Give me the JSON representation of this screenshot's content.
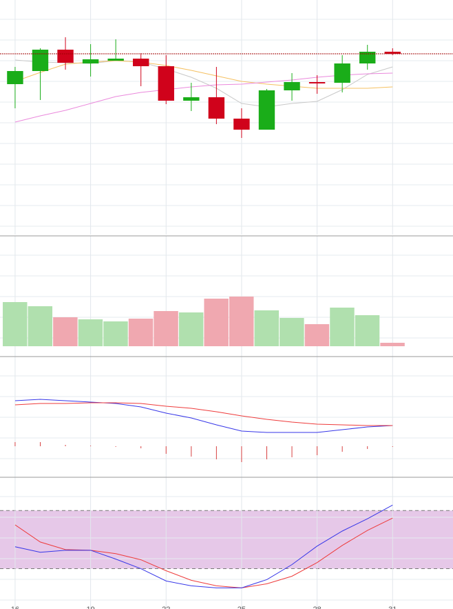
{
  "chart_data": [
    {
      "type": "candlestick",
      "x": [
        16,
        17,
        18,
        19,
        20,
        21,
        22,
        23,
        24,
        25,
        26,
        27,
        28,
        29,
        30,
        31
      ],
      "xlim": [
        15.4,
        33.4
      ],
      "xticks": [
        16,
        19,
        22,
        25,
        28,
        31
      ],
      "ylim": [
        0,
        340
      ],
      "grid": true,
      "up_color": "#1aad19",
      "down_color": "#d0021b",
      "open": [
        218,
        237,
        268,
        248,
        252,
        255,
        244,
        194,
        199,
        168,
        152,
        209,
        221,
        220,
        248,
        265
      ],
      "close": [
        237,
        268,
        249,
        254,
        255,
        244,
        194,
        199,
        168,
        152,
        209,
        221,
        219,
        248,
        265,
        262
      ],
      "high": [
        243,
        270,
        286,
        276,
        283,
        263,
        260,
        220,
        243,
        183,
        211,
        234,
        231,
        260,
        275,
        270
      ],
      "low": [
        183,
        195,
        239,
        229,
        252,
        215,
        189,
        179,
        160,
        140,
        152,
        194,
        204,
        206,
        239,
        260
      ],
      "price_line": 262,
      "price_line_color": "#a00000",
      "series": [
        {
          "color": "#c8c8c8",
          "values": [
            253,
            250,
            249,
            248,
            252,
            250,
            240,
            228,
            212,
            190,
            185,
            190,
            193,
            210,
            232,
            243
          ]
        },
        {
          "color": "#f5c060",
          "values": [
            222,
            235,
            247,
            250,
            252,
            250,
            245,
            238,
            230,
            222,
            218,
            215,
            212,
            212,
            212,
            214
          ]
        },
        {
          "color": "#ea88dc",
          "values": [
            163,
            172,
            180,
            190,
            200,
            206,
            210,
            214,
            217,
            218,
            221,
            224,
            228,
            231,
            233,
            234
          ]
        }
      ]
    },
    {
      "type": "bar",
      "x": [
        16,
        17,
        18,
        19,
        20,
        21,
        22,
        23,
        24,
        25,
        26,
        27,
        28,
        29,
        30,
        31
      ],
      "xlim": [
        15.4,
        33.4
      ],
      "xticks": [
        16,
        19,
        22,
        25,
        28,
        31
      ],
      "ylim": [
        -15,
        160
      ],
      "grid": true,
      "values": [
        64,
        58,
        42,
        39,
        36,
        40,
        51,
        49,
        69,
        72,
        52,
        41,
        32,
        56,
        45,
        5
      ],
      "colors": [
        "#b0e0ae",
        "#b0e0ae",
        "#f0a8b0",
        "#b0e0ae",
        "#b0e0ae",
        "#f0a8b0",
        "#f0a8b0",
        "#b0e0ae",
        "#f0a8b0",
        "#f0a8b0",
        "#b0e0ae",
        "#b0e0ae",
        "#f0a8b0",
        "#b0e0ae",
        "#b0e0ae",
        "#f0a8b0"
      ]
    },
    {
      "type": "macd",
      "x": [
        16,
        17,
        18,
        19,
        20,
        21,
        22,
        23,
        24,
        25,
        26,
        27,
        28,
        29,
        30,
        31
      ],
      "xlim": [
        15.4,
        33.4
      ],
      "xticks": [
        16,
        19,
        22,
        25,
        28,
        31
      ],
      "ylim": [
        -45,
        130
      ],
      "grid": true,
      "hist_color": "#d84040",
      "hist": [
        6,
        6,
        2,
        1,
        -1,
        -3,
        -11,
        -15,
        -19,
        -23,
        -19,
        -16,
        -13,
        -8,
        -4,
        -1
      ],
      "series": [
        {
          "color": "#3535e8",
          "values": [
            66,
            68,
            66,
            64,
            62,
            57,
            48,
            41,
            31,
            22,
            20,
            20,
            20,
            24,
            28,
            30
          ]
        },
        {
          "color": "#ee3a3a",
          "values": [
            60,
            62,
            62,
            63,
            63,
            62,
            58,
            55,
            50,
            44,
            39,
            35,
            32,
            31,
            30,
            30
          ]
        }
      ]
    },
    {
      "type": "stochastic",
      "x": [
        16,
        17,
        18,
        19,
        20,
        21,
        22,
        23,
        24,
        25,
        26,
        27,
        28,
        29,
        30,
        31
      ],
      "xlim": [
        15.4,
        33.4
      ],
      "xticks": [
        16,
        19,
        22,
        25,
        28,
        31
      ],
      "ylim": [
        -21.6,
        114.3
      ],
      "grid": true,
      "band": [
        20,
        80
      ],
      "band_color": "#e6c8e8",
      "series": [
        {
          "color": "#ee3a3a",
          "values": [
            65.2,
            47.5,
            39.7,
            39.0,
            35.5,
            29.2,
            17.9,
            8.0,
            2.3,
            0.2,
            4.4,
            12.2,
            26.3,
            44.0,
            59.5,
            72.2
          ]
        },
        {
          "color": "#3535e8",
          "values": [
            42.6,
            36.9,
            39.0,
            39.0,
            29.9,
            20.0,
            7.3,
            2.3,
            0.2,
            0.2,
            8.7,
            24.2,
            43.3,
            58.8,
            71.5,
            85.6
          ]
        }
      ]
    }
  ]
}
